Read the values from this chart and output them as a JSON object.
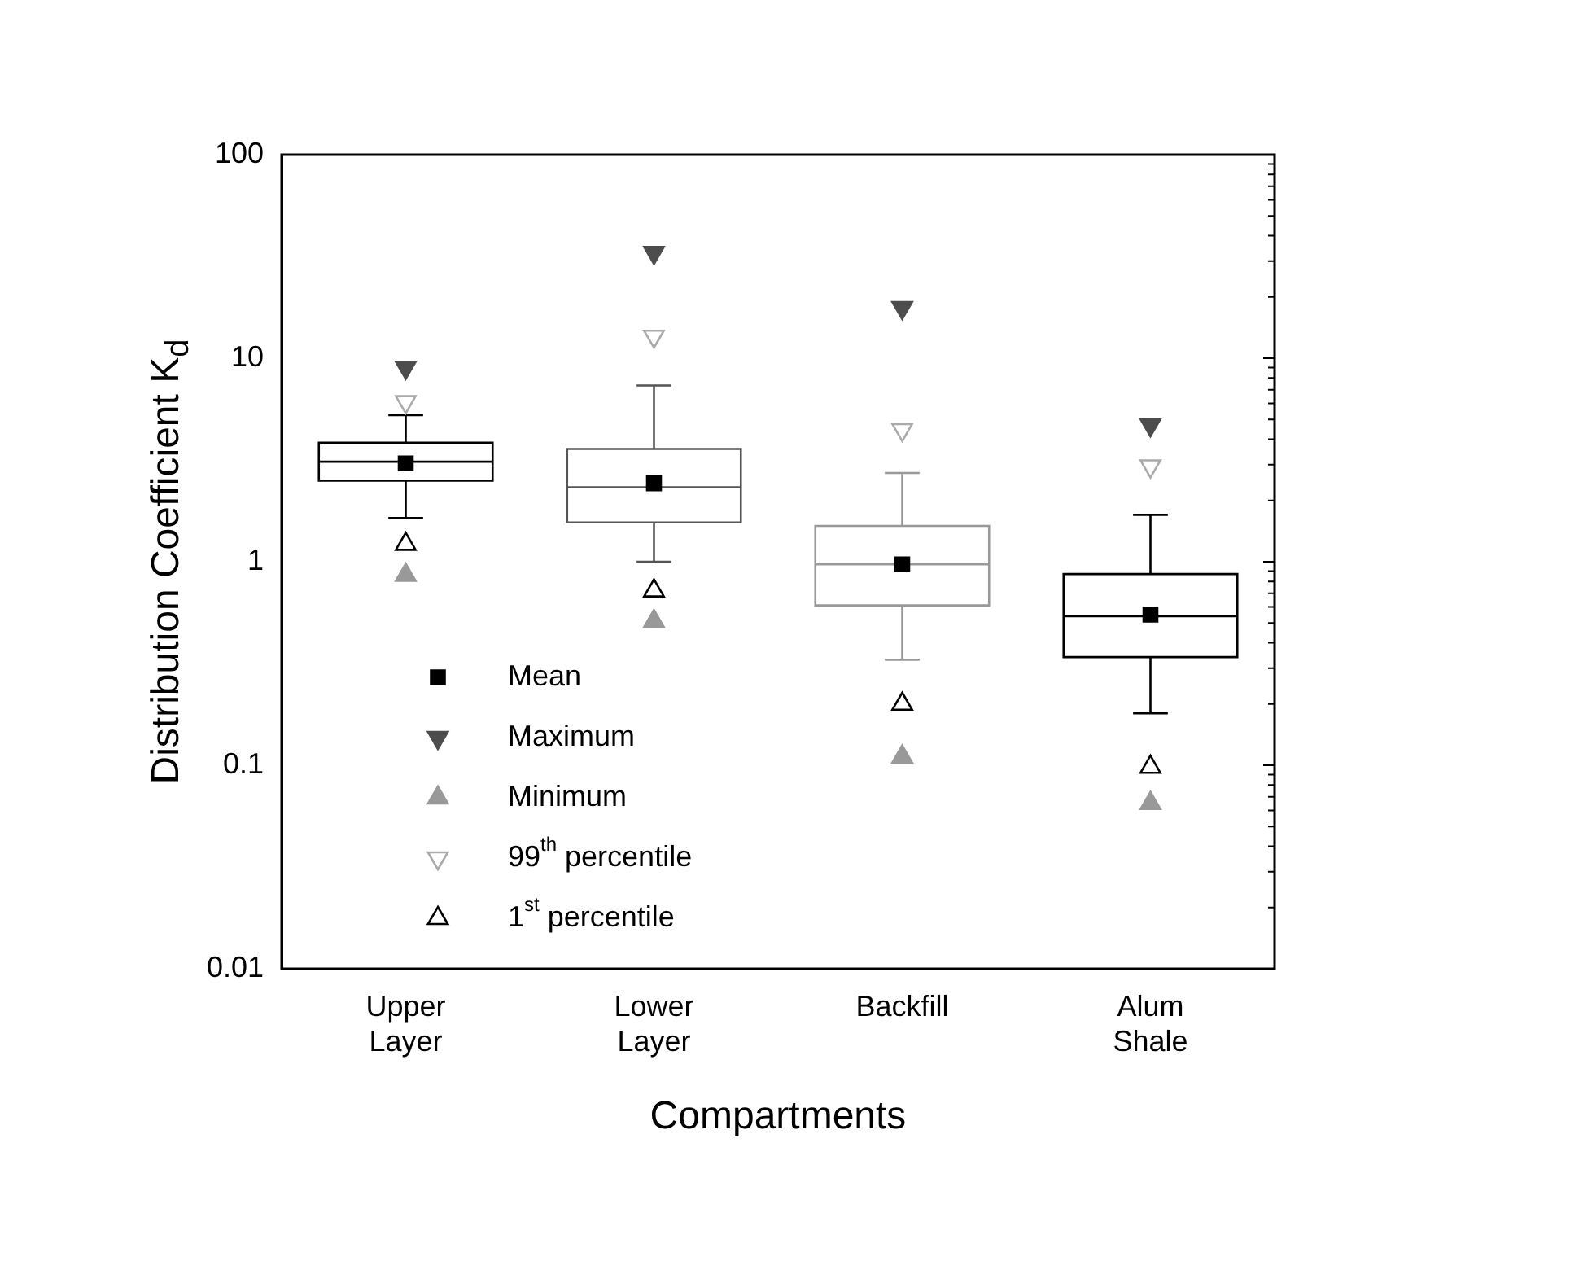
{
  "chart_data": {
    "type": "box",
    "xlabel": "Compartments",
    "ylabel": "Distribution Coefficient K$_{d}$",
    "categories": [
      "Upper Layer",
      "Lower Layer",
      "Backfill",
      "Alum Shale"
    ],
    "log": "y",
    "ylim": [
      0.01,
      100
    ],
    "yticks": [
      0.01,
      {
        "value": 0.02,
        "label": null
      },
      {
        "value": 0.03,
        "label": null
      },
      {
        "value": 0.04,
        "label": null
      },
      {
        "value": 0.05,
        "label": null
      },
      {
        "value": 0.06,
        "label": null
      },
      {
        "value": 0.07,
        "label": null
      },
      {
        "value": 0.08,
        "label": null
      },
      {
        "value": 0.09,
        "label": null
      },
      0.1,
      {
        "value": 0.2,
        "label": null
      },
      {
        "value": 0.3,
        "label": null
      },
      {
        "value": 0.4,
        "label": null
      },
      {
        "value": 0.5,
        "label": null
      },
      {
        "value": 0.6,
        "label": null
      },
      {
        "value": 0.7,
        "label": null
      },
      {
        "value": 0.8,
        "label": null
      },
      {
        "value": 0.9,
        "label": null
      },
      1,
      {
        "value": 2,
        "label": null
      },
      {
        "value": 3,
        "label": null
      },
      {
        "value": 4,
        "label": null
      },
      {
        "value": 5,
        "label": null
      },
      {
        "value": 6,
        "label": null
      },
      {
        "value": 7,
        "label": null
      },
      {
        "value": 8,
        "label": null
      },
      {
        "value": 9,
        "label": null
      },
      10,
      {
        "value": 20,
        "label": null
      },
      {
        "value": 30,
        "label": null
      },
      {
        "value": 40,
        "label": null
      },
      {
        "value": 50,
        "label": null
      },
      {
        "value": 60,
        "label": null
      },
      {
        "value": 70,
        "label": null
      },
      {
        "value": 80,
        "label": null
      },
      {
        "value": 90,
        "label": null
      },
      100
    ],
    "grid": false,
    "legend": "bottom left",
    "series": [
      {
        "type": "box",
        "colors": [
          "#000000",
          "#555555",
          "#999999",
          "#000000"
        ],
        "boxes": [
          {
            "low": 1.64,
            "q1": 2.5,
            "median": 3.1,
            "q3": 3.84,
            "high": 5.25
          },
          {
            "low": 1.0,
            "q1": 1.56,
            "median": 2.32,
            "q3": 3.58,
            "high": 7.35
          },
          {
            "low": 0.33,
            "q1": 0.61,
            "median": 0.97,
            "q3": 1.5,
            "high": 2.73
          },
          {
            "low": 0.18,
            "q1": 0.34,
            "median": 0.54,
            "q3": 0.87,
            "high": 1.7
          }
        ]
      },
      {
        "type": "scatter",
        "name": "Mean",
        "color": "#000000",
        "marker": "square",
        "x": [
          "Upper Layer",
          "Lower Layer",
          "Backfill",
          "Alum Shale"
        ],
        "values": [
          3.04,
          2.43,
          0.97,
          0.55
        ]
      },
      {
        "type": "scatter",
        "name": "Maximum",
        "color": "#4d4d4d",
        "marker": "triangle-down",
        "x": [
          "Upper Layer",
          "Lower Layer",
          "Backfill",
          "Alum Shale"
        ],
        "values": [
          9.0,
          33,
          17.7,
          4.7
        ]
      },
      {
        "type": "scatter",
        "name": "Minimum",
        "color": "#999999",
        "marker": "triangle",
        "x": [
          "Upper Layer",
          "Lower Layer",
          "Backfill",
          "Alum Shale"
        ],
        "values": [
          0.86,
          0.51,
          0.11,
          0.065
        ]
      },
      {
        "type": "scatter",
        "name": "99$^{th}$ percentile",
        "color": "#aaaaaa",
        "marker": "triangle-down-open",
        "x": [
          "Upper Layer",
          "Lower Layer",
          "Backfill",
          "Alum Shale"
        ],
        "values": [
          6.1,
          12.8,
          4.45,
          2.95
        ]
      },
      {
        "type": "scatter",
        "name": "1$^{st}$ percentile",
        "color": "#000000",
        "marker": "triangle-open",
        "x": [
          "Upper Layer",
          "Lower Layer",
          "Backfill",
          "Alum Shale"
        ],
        "values": [
          1.22,
          0.72,
          0.2,
          0.098
        ]
      }
    ]
  }
}
